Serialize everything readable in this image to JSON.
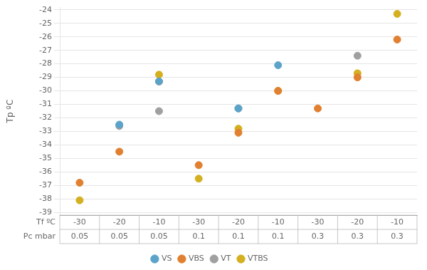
{
  "chart_data": {
    "type": "scatter",
    "y_label": "Tp ºC",
    "table": {
      "rows": [
        {
          "label": "Tf ºC",
          "values": [
            -30,
            -20,
            -10,
            -30,
            -20,
            -10,
            -30,
            -20,
            -10
          ]
        },
        {
          "label": "Pc mbar",
          "values": [
            0.05,
            0.05,
            0.05,
            0.1,
            0.1,
            0.1,
            0.3,
            0.3,
            0.3
          ]
        }
      ]
    },
    "series": [
      {
        "name": "VS",
        "color": "#5ba3c9",
        "values": [
          null,
          -32.5,
          -29.3,
          null,
          -31.3,
          -28.1,
          null,
          null,
          null
        ]
      },
      {
        "name": "VBS",
        "color": "#e08030",
        "values": [
          -36.8,
          -34.5,
          -29.3,
          -35.5,
          -33.1,
          -30.0,
          -31.3,
          -29.0,
          -26.2
        ]
      },
      {
        "name": "VT",
        "color": "#a0a0a0",
        "values": [
          null,
          -32.6,
          -31.5,
          null,
          -31.3,
          null,
          null,
          -27.4,
          null
        ]
      },
      {
        "name": "VTBS",
        "color": "#d4b020",
        "values": [
          -38.1,
          null,
          -28.8,
          -36.5,
          -32.8,
          -30.0,
          null,
          -28.7,
          -24.3
        ]
      }
    ],
    "ylim": [
      -39.2,
      -23.8
    ],
    "yticks": [
      -24,
      -25,
      -26,
      -27,
      -28,
      -29,
      -30,
      -31,
      -32,
      -33,
      -34,
      -35,
      -36,
      -37,
      -38,
      -39
    ],
    "grid": true,
    "legend": "bottom",
    "marker": "circle"
  }
}
